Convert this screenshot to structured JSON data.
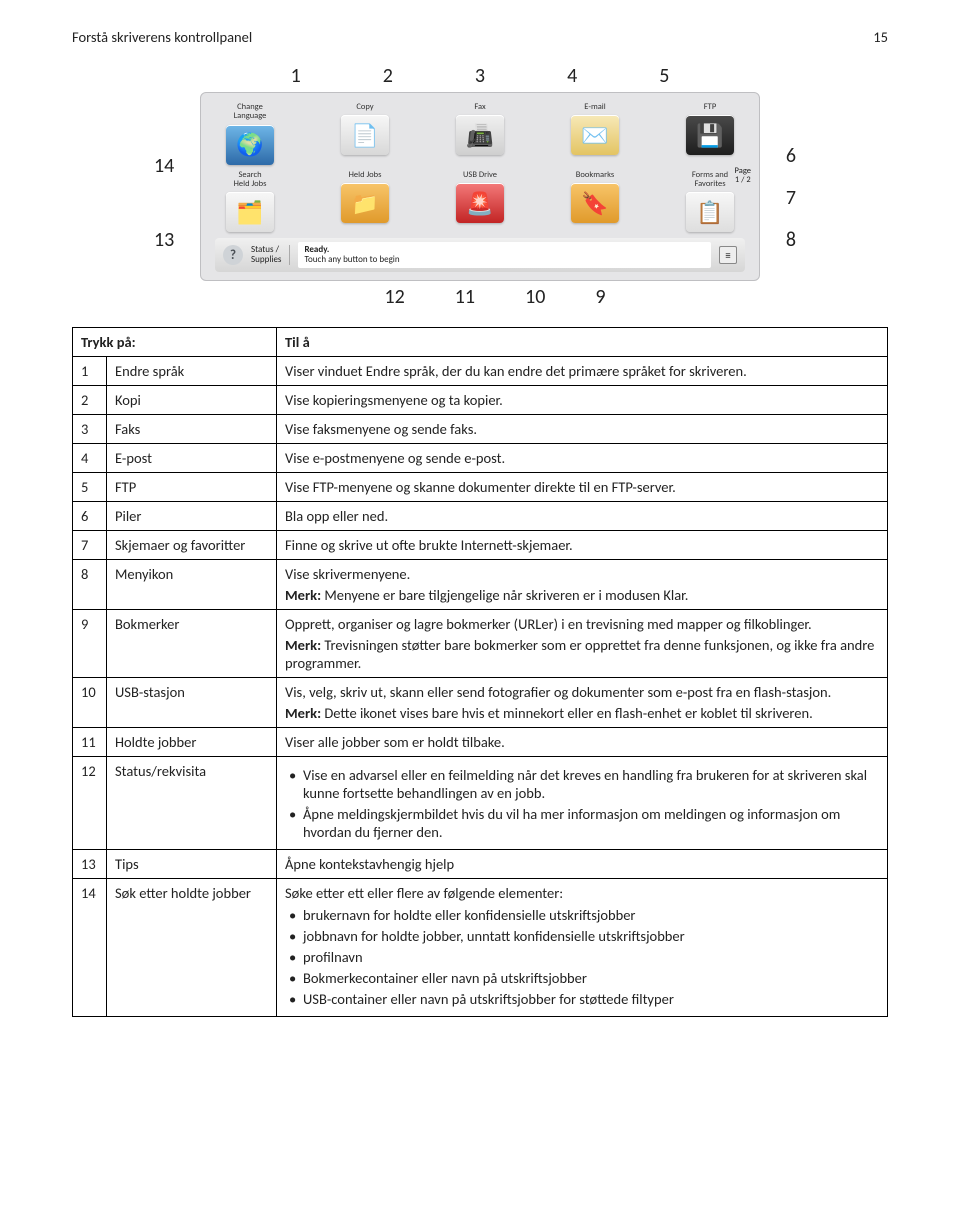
{
  "header": {
    "title": "Forstå skriverens kontrollpanel",
    "page_number": "15"
  },
  "callouts": {
    "top": [
      "1",
      "2",
      "3",
      "4",
      "5"
    ],
    "left": [
      "14",
      "13"
    ],
    "right": [
      "6",
      "7",
      "8"
    ],
    "bottom": [
      "12",
      "11",
      "10",
      "9"
    ]
  },
  "screen": {
    "row1": [
      {
        "label": "Change\nLanguage",
        "glyph": "🌍",
        "bg": "linear-gradient(#6fb7e8,#2d6aa8)"
      },
      {
        "label": "Copy",
        "glyph": "📄",
        "bg": "linear-gradient(#f7f7f7,#d8d8d8)"
      },
      {
        "label": "Fax",
        "glyph": "📠",
        "bg": "linear-gradient(#f0f0f0,#cfcfcf)"
      },
      {
        "label": "E-mail",
        "glyph": "✉️",
        "bg": "linear-gradient(#f7e9b8,#e3c463)"
      },
      {
        "label": "FTP",
        "glyph": "💾",
        "bg": "linear-gradient(#4a4a4a,#1e1e1e)"
      }
    ],
    "row2": [
      {
        "label": "Search\nHeld Jobs",
        "glyph": "🗂️",
        "bg": "linear-gradient(#f7f7f7,#dedede)"
      },
      {
        "label": "Held Jobs",
        "glyph": "📁",
        "bg": "linear-gradient(#f8c56a,#e09a2b)"
      },
      {
        "label": "USB Drive",
        "glyph": "🚨",
        "bg": "linear-gradient(#f47a7a,#c22424)"
      },
      {
        "label": "Bookmarks",
        "glyph": "🔖",
        "bg": "linear-gradient(#f8c56a,#e09a2b)"
      },
      {
        "label": "Forms and\nFavorites",
        "glyph": "📋",
        "bg": "linear-gradient(#f7f7f7,#dedede)"
      }
    ],
    "page_indicator": "Page\n1 / 2",
    "status": {
      "left_label": "Status /\nSupplies",
      "ready": "Ready.",
      "touch": "Touch any button to begin"
    }
  },
  "table": {
    "head": [
      "Trykk på:",
      "Til å"
    ],
    "rows": [
      {
        "n": "1",
        "name": "Endre språk",
        "desc": [
          {
            "t": "Viser vinduet Endre språk, der du kan endre det primære språket for skriveren."
          }
        ]
      },
      {
        "n": "2",
        "name": "Kopi",
        "desc": [
          {
            "t": "Vise kopieringsmenyene og ta kopier."
          }
        ]
      },
      {
        "n": "3",
        "name": "Faks",
        "desc": [
          {
            "t": "Vise faksmenyene og sende faks."
          }
        ]
      },
      {
        "n": "4",
        "name": "E-post",
        "desc": [
          {
            "t": "Vise e-postmenyene og sende e-post."
          }
        ]
      },
      {
        "n": "5",
        "name": "FTP",
        "desc": [
          {
            "t": "Vise FTP-menyene og skanne dokumenter direkte til en FTP-server."
          }
        ]
      },
      {
        "n": "6",
        "name": "Piler",
        "desc": [
          {
            "t": "Bla opp eller ned."
          }
        ]
      },
      {
        "n": "7",
        "name": "Skjemaer og favoritter",
        "desc": [
          {
            "t": "Finne og skrive ut ofte brukte Internett-skjemaer."
          }
        ]
      },
      {
        "n": "8",
        "name": "Menyikon",
        "desc": [
          {
            "t": "Vise skrivermenyene."
          },
          {
            "note": "Merk:",
            "t": " Menyene er bare tilgjengelige når skriveren er i modusen Klar."
          }
        ]
      },
      {
        "n": "9",
        "name": "Bokmerker",
        "desc": [
          {
            "t": "Opprett, organiser og lagre bokmerker (URLer) i en trevisning med mapper og filkoblinger."
          },
          {
            "note": "Merk:",
            "t": " Trevisningen støtter bare bokmerker som er opprettet fra denne funksjonen, og ikke fra andre programmer."
          }
        ]
      },
      {
        "n": "10",
        "name": "USB-stasjon",
        "desc": [
          {
            "t": "Vis, velg, skriv ut, skann eller send fotografier og dokumenter som e-post fra en flash-stasjon."
          },
          {
            "note": "Merk:",
            "t": " Dette ikonet vises bare hvis et minnekort eller en flash-enhet er koblet til skriveren."
          }
        ]
      },
      {
        "n": "11",
        "name": "Holdte jobber",
        "desc": [
          {
            "t": "Viser alle jobber som er holdt tilbake."
          }
        ]
      },
      {
        "n": "12",
        "name": "Status/rekvisita",
        "desc": [
          {
            "bullets": [
              "Vise en advarsel eller en feilmelding når det kreves en handling fra brukeren for at skriveren skal kunne fortsette behandlingen av en jobb.",
              "Åpne meldingskjermbildet hvis du vil ha mer informasjon om meldingen og informasjon om hvordan du fjerner den."
            ]
          }
        ]
      },
      {
        "n": "13",
        "name": "Tips",
        "desc": [
          {
            "t": "Åpne kontekstavhengig hjelp"
          }
        ]
      },
      {
        "n": "14",
        "name": "Søk etter holdte jobber",
        "desc": [
          {
            "t": "Søke etter ett eller flere av følgende elementer:"
          },
          {
            "bullets": [
              "brukernavn for holdte eller konfidensielle utskriftsjobber",
              "jobbnavn for holdte jobber, unntatt konfidensielle utskriftsjobber",
              "profilnavn",
              "Bokmerkecontainer eller navn på utskriftsjobber",
              "USB-container eller navn på utskriftsjobber for støttede filtyper"
            ]
          }
        ]
      }
    ]
  }
}
